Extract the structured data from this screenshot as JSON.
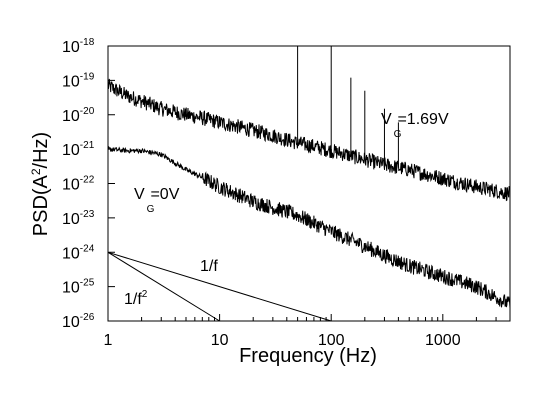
{
  "chart_data": {
    "type": "line",
    "xlabel": "Frequency (Hz)",
    "ylabel_base": "PSD(A",
    "ylabel_sup": "2",
    "ylabel_end": "/Hz)",
    "xscale": "log",
    "yscale": "log",
    "xlim": [
      1,
      4000
    ],
    "ylim": [
      1e-26,
      1e-18
    ],
    "grid": false,
    "x_ticks": [
      {
        "value": 1,
        "label": "1"
      },
      {
        "value": 10,
        "label": "10"
      },
      {
        "value": 100,
        "label": "100"
      },
      {
        "value": 1000,
        "label": "1000"
      }
    ],
    "y_ticks": [
      {
        "value": 1e-18,
        "base": "10",
        "exp": "-18"
      },
      {
        "value": 1e-19,
        "base": "10",
        "exp": "-19"
      },
      {
        "value": 1e-20,
        "base": "10",
        "exp": "-20"
      },
      {
        "value": 1e-21,
        "base": "10",
        "exp": "-21"
      },
      {
        "value": 1e-22,
        "base": "10",
        "exp": "-22"
      },
      {
        "value": 1e-23,
        "base": "10",
        "exp": "-23"
      },
      {
        "value": 1e-24,
        "base": "10",
        "exp": "-24"
      },
      {
        "value": 1e-25,
        "base": "10",
        "exp": "-25"
      },
      {
        "value": 1e-26,
        "base": "10",
        "exp": "-26"
      }
    ],
    "series": [
      {
        "color": "#000000",
        "x": [
          1,
          1.5,
          2,
          3,
          5,
          7,
          10,
          20,
          30,
          50,
          70,
          100,
          200,
          300,
          500,
          1000,
          2000,
          4000
        ],
        "y": [
          7e-20,
          3.5e-20,
          2.5e-20,
          1.5e-20,
          1e-20,
          8e-21,
          6e-21,
          3.5e-21,
          2.5e-21,
          1.5e-21,
          1.2e-21,
          9e-22,
          5e-22,
          3.5e-22,
          2.5e-22,
          1.4e-22,
          8e-23,
          5e-23
        ],
        "spikes": [
          {
            "x": 50,
            "y": 1e-18
          },
          {
            "x": 100,
            "y": 1e-18
          },
          {
            "x": 150,
            "y": 1.2e-19
          },
          {
            "x": 200,
            "y": 5e-20
          },
          {
            "x": 300,
            "y": 1.5e-20
          },
          {
            "x": 400,
            "y": 6e-21
          }
        ]
      },
      {
        "color": "#000000",
        "x": [
          1,
          1.5,
          2,
          3,
          5,
          7,
          10,
          20,
          30,
          50,
          70,
          100,
          200,
          300,
          500,
          1000,
          2000,
          4000
        ],
        "y": [
          1e-21,
          9e-22,
          9e-22,
          7e-22,
          2.5e-22,
          1.5e-22,
          8e-23,
          3e-23,
          2e-23,
          1.2e-23,
          7e-24,
          4e-24,
          1.5e-24,
          8e-25,
          4e-25,
          2e-25,
          1e-25,
          3e-26
        ]
      },
      {
        "color": "#000000",
        "x": [
          1,
          100
        ],
        "y": [
          1e-24,
          1e-26
        ]
      },
      {
        "color": "#000000",
        "x": [
          1,
          10
        ],
        "y": [
          1e-24,
          1e-26
        ]
      }
    ],
    "annotations": [
      {
        "main": "V",
        "sub": "G",
        "rest": "=1.69V"
      },
      {
        "main": "V",
        "sub": "G",
        "rest": "=0V"
      },
      {
        "main": "1/f",
        "sup": ""
      },
      {
        "main": "1/f",
        "sup": "2"
      }
    ]
  }
}
